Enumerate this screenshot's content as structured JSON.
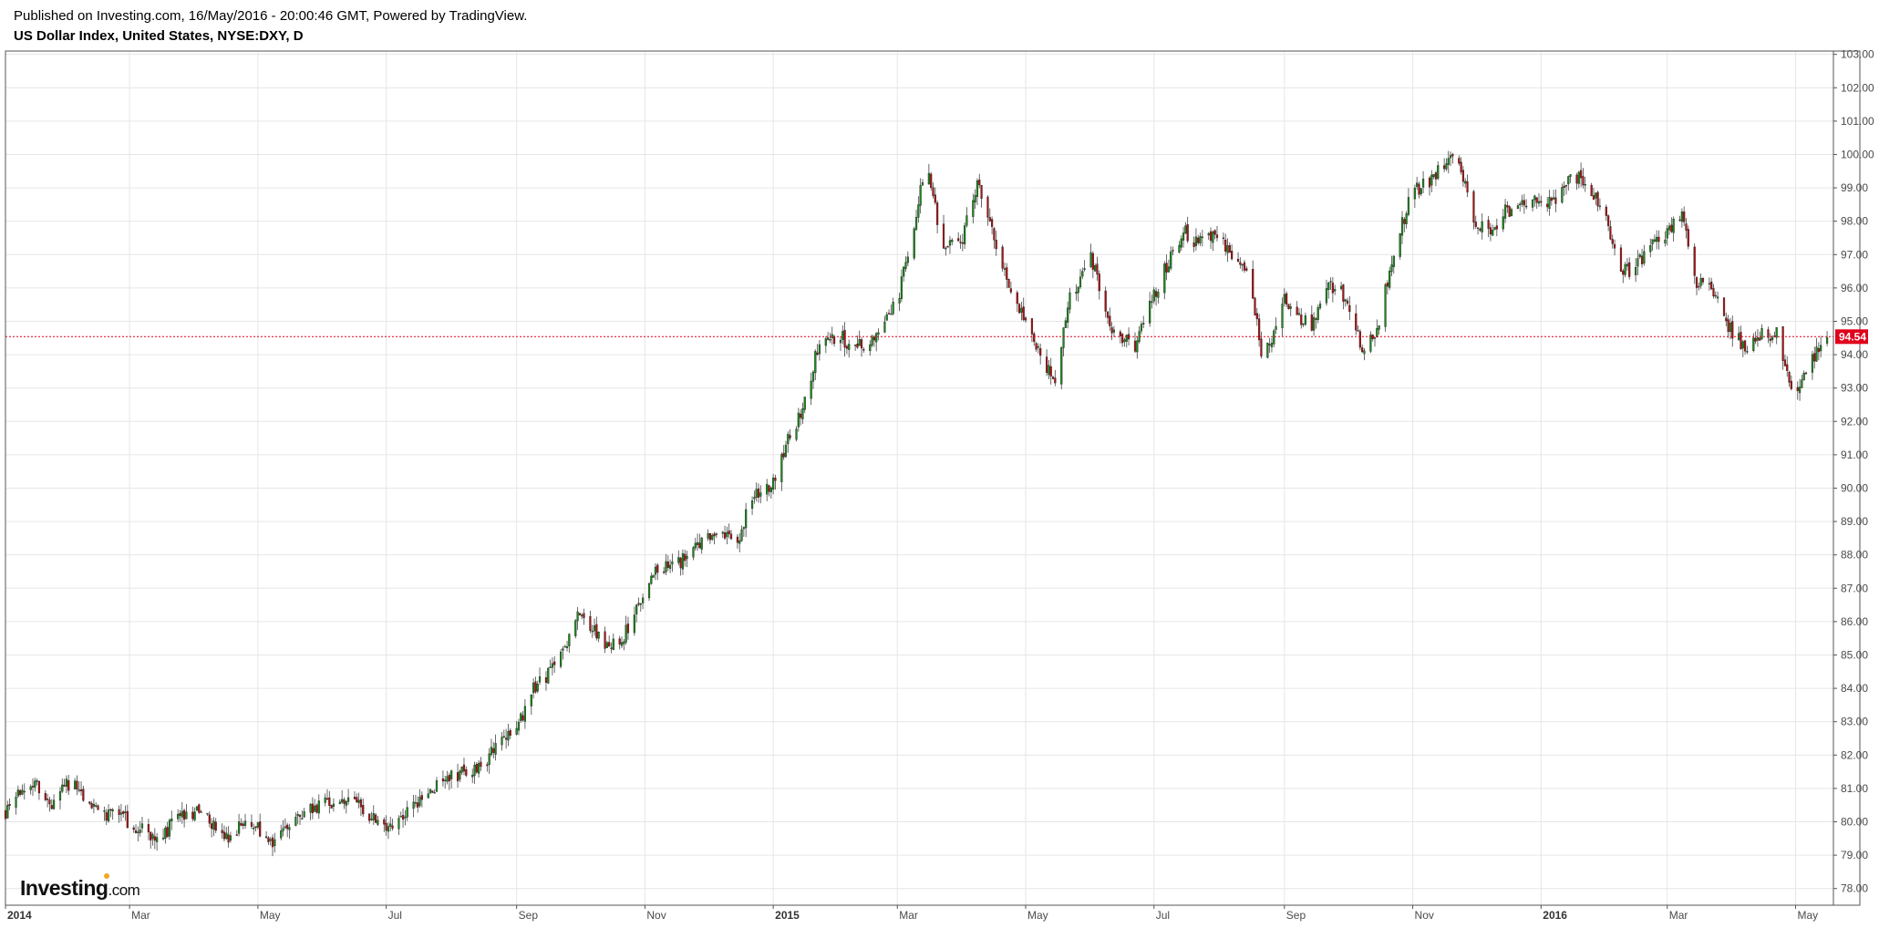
{
  "header": {
    "published": "Published on Investing.com, 16/May/2016 - 20:00:46 GMT, Powered by TradingView.",
    "symbol": "US Dollar Index, United States, NYSE:DXY, D"
  },
  "logo": {
    "brand": "Investing",
    "tld": ".com"
  },
  "colors": {
    "up": "#1a8a1a",
    "down": "#b01010",
    "grid": "#e6e6e6",
    "axis": "#555555",
    "last_price": "#e0001a"
  },
  "chart_data": {
    "type": "candlestick",
    "title": "",
    "ylim": [
      77.5,
      103.1
    ],
    "y_ticks": [
      "103.00",
      "102.00",
      "101.00",
      "100.00",
      "99.00",
      "98.00",
      "97.00",
      "96.00",
      "95.00",
      "94.00",
      "93.00",
      "92.00",
      "91.00",
      "90.00",
      "89.00",
      "88.00",
      "87.00",
      "86.00",
      "85.00",
      "84.00",
      "83.00",
      "82.00",
      "81.00",
      "80.00",
      "79.00",
      "78.00"
    ],
    "x_range": [
      "2014-01-01",
      "2016-05-19"
    ],
    "x_ticks": [
      {
        "label": "2014",
        "date": "2014-01-01",
        "bold": true
      },
      {
        "label": "Mar",
        "date": "2014-03-01"
      },
      {
        "label": "May",
        "date": "2014-05-01"
      },
      {
        "label": "Jul",
        "date": "2014-07-01"
      },
      {
        "label": "Sep",
        "date": "2014-09-01"
      },
      {
        "label": "Nov",
        "date": "2014-11-01"
      },
      {
        "label": "2015",
        "date": "2015-01-01",
        "bold": true
      },
      {
        "label": "Mar",
        "date": "2015-03-01"
      },
      {
        "label": "May",
        "date": "2015-05-01"
      },
      {
        "label": "Jul",
        "date": "2015-07-01"
      },
      {
        "label": "Sep",
        "date": "2015-09-01"
      },
      {
        "label": "Nov",
        "date": "2015-11-01"
      },
      {
        "label": "2016",
        "date": "2016-01-01",
        "bold": true
      },
      {
        "label": "Mar",
        "date": "2016-03-01"
      },
      {
        "label": "May",
        "date": "2016-05-01"
      }
    ],
    "last_price": "94.54",
    "last_value": 94.54,
    "grid": true,
    "close_path": [
      [
        "2014-01-01",
        80.3
      ],
      [
        "2014-01-08",
        80.9
      ],
      [
        "2014-01-15",
        81.2
      ],
      [
        "2014-01-22",
        80.5
      ],
      [
        "2014-02-01",
        81.2
      ],
      [
        "2014-02-08",
        80.8
      ],
      [
        "2014-02-15",
        80.1
      ],
      [
        "2014-02-22",
        80.3
      ],
      [
        "2014-03-01",
        80.0
      ],
      [
        "2014-03-08",
        79.7
      ],
      [
        "2014-03-15",
        79.4
      ],
      [
        "2014-03-22",
        80.0
      ],
      [
        "2014-04-01",
        80.3
      ],
      [
        "2014-04-08",
        80.1
      ],
      [
        "2014-04-15",
        79.5
      ],
      [
        "2014-04-22",
        79.8
      ],
      [
        "2014-05-01",
        79.8
      ],
      [
        "2014-05-08",
        79.3
      ],
      [
        "2014-05-15",
        80.0
      ],
      [
        "2014-05-22",
        80.3
      ],
      [
        "2014-06-01",
        80.5
      ],
      [
        "2014-06-08",
        80.7
      ],
      [
        "2014-06-15",
        80.6
      ],
      [
        "2014-06-22",
        80.3
      ],
      [
        "2014-07-01",
        79.9
      ],
      [
        "2014-07-08",
        80.1
      ],
      [
        "2014-07-15",
        80.5
      ],
      [
        "2014-07-22",
        81.0
      ],
      [
        "2014-08-01",
        81.4
      ],
      [
        "2014-08-08",
        81.5
      ],
      [
        "2014-08-15",
        81.6
      ],
      [
        "2014-08-22",
        82.3
      ],
      [
        "2014-09-01",
        82.7
      ],
      [
        "2014-09-08",
        84.0
      ],
      [
        "2014-09-15",
        84.3
      ],
      [
        "2014-09-22",
        85.0
      ],
      [
        "2014-10-01",
        86.3
      ],
      [
        "2014-10-08",
        85.8
      ],
      [
        "2014-10-15",
        85.2
      ],
      [
        "2014-10-22",
        85.6
      ],
      [
        "2014-11-01",
        87.0
      ],
      [
        "2014-11-08",
        87.7
      ],
      [
        "2014-11-15",
        87.7
      ],
      [
        "2014-11-22",
        88.0
      ],
      [
        "2014-12-01",
        88.5
      ],
      [
        "2014-12-08",
        88.7
      ],
      [
        "2014-12-15",
        88.3
      ],
      [
        "2014-12-22",
        89.8
      ],
      [
        "2015-01-01",
        90.2
      ],
      [
        "2015-01-08",
        91.5
      ],
      [
        "2015-01-15",
        92.3
      ],
      [
        "2015-01-22",
        94.2
      ],
      [
        "2015-02-01",
        94.6
      ],
      [
        "2015-02-08",
        94.2
      ],
      [
        "2015-02-15",
        94.3
      ],
      [
        "2015-02-22",
        94.8
      ],
      [
        "2015-03-01",
        95.6
      ],
      [
        "2015-03-08",
        97.6
      ],
      [
        "2015-03-15",
        99.8
      ],
      [
        "2015-03-22",
        97.4
      ],
      [
        "2015-04-01",
        97.5
      ],
      [
        "2015-04-08",
        99.2
      ],
      [
        "2015-04-15",
        97.8
      ],
      [
        "2015-04-22",
        96.2
      ],
      [
        "2015-05-01",
        95.0
      ],
      [
        "2015-05-08",
        94.0
      ],
      [
        "2015-05-15",
        93.2
      ],
      [
        "2015-05-22",
        95.7
      ],
      [
        "2015-06-01",
        97.0
      ],
      [
        "2015-06-08",
        95.1
      ],
      [
        "2015-06-15",
        94.5
      ],
      [
        "2015-06-22",
        94.3
      ],
      [
        "2015-07-01",
        95.8
      ],
      [
        "2015-07-08",
        96.8
      ],
      [
        "2015-07-15",
        97.7
      ],
      [
        "2015-07-22",
        97.3
      ],
      [
        "2015-08-01",
        97.6
      ],
      [
        "2015-08-08",
        96.9
      ],
      [
        "2015-08-15",
        96.3
      ],
      [
        "2015-08-22",
        93.8
      ],
      [
        "2015-09-01",
        95.7
      ],
      [
        "2015-09-08",
        95.1
      ],
      [
        "2015-09-15",
        94.9
      ],
      [
        "2015-09-22",
        96.1
      ],
      [
        "2015-10-01",
        95.7
      ],
      [
        "2015-10-08",
        94.1
      ],
      [
        "2015-10-15",
        94.6
      ],
      [
        "2015-10-22",
        96.9
      ],
      [
        "2015-11-01",
        98.9
      ],
      [
        "2015-11-08",
        99.1
      ],
      [
        "2015-11-15",
        99.6
      ],
      [
        "2015-11-22",
        100.0
      ],
      [
        "2015-12-01",
        97.9
      ],
      [
        "2015-12-08",
        97.7
      ],
      [
        "2015-12-15",
        98.3
      ],
      [
        "2015-12-22",
        98.4
      ],
      [
        "2016-01-01",
        98.6
      ],
      [
        "2016-01-08",
        98.7
      ],
      [
        "2016-01-15",
        99.3
      ],
      [
        "2016-01-22",
        99.3
      ],
      [
        "2016-02-01",
        98.0
      ],
      [
        "2016-02-08",
        96.5
      ],
      [
        "2016-02-15",
        96.6
      ],
      [
        "2016-02-22",
        97.3
      ],
      [
        "2016-03-01",
        97.7
      ],
      [
        "2016-03-08",
        98.2
      ],
      [
        "2016-03-15",
        96.2
      ],
      [
        "2016-03-22",
        96.0
      ],
      [
        "2016-04-01",
        94.6
      ],
      [
        "2016-04-08",
        94.2
      ],
      [
        "2016-04-15",
        94.7
      ],
      [
        "2016-04-22",
        94.6
      ],
      [
        "2016-05-01",
        92.6
      ],
      [
        "2016-05-08",
        93.8
      ],
      [
        "2016-05-16",
        94.5
      ]
    ]
  }
}
